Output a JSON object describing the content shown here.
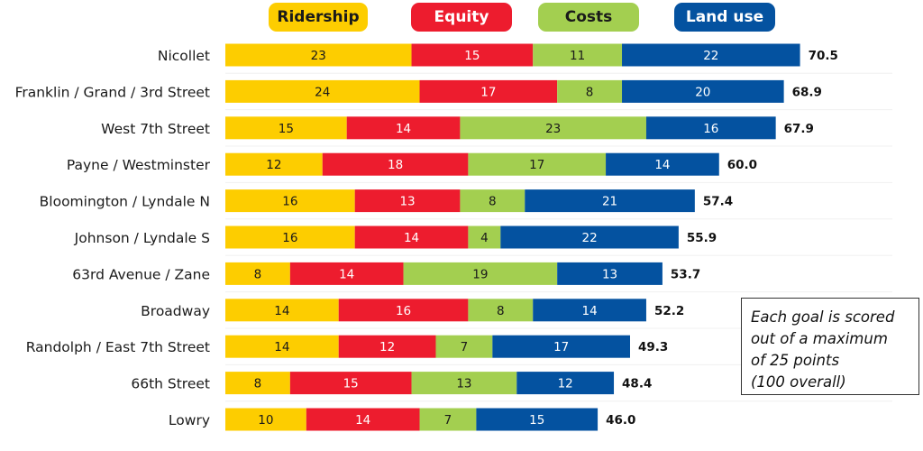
{
  "chart_data": {
    "type": "bar",
    "orientation": "horizontal",
    "stacked": true,
    "title": "",
    "xlabel": "",
    "ylabel": "",
    "xlim": [
      0,
      100
    ],
    "grid": false,
    "legend_position": "top",
    "categories": [
      "Nicollet",
      "Franklin / Grand / 3rd Street",
      "West 7th Street",
      "Payne / Westminster",
      "Bloomington / Lyndale N",
      "Johnson / Lyndale S",
      "63rd Avenue / Zane",
      "Broadway",
      "Randolph / East 7th Street",
      "66th Street",
      "Lowry"
    ],
    "series": [
      {
        "name": "Ridership",
        "color": "#FDCD00",
        "text_color": "#1a1a1a",
        "values": [
          23,
          24,
          15,
          12,
          16,
          16,
          8,
          14,
          14,
          8,
          10
        ]
      },
      {
        "name": "Equity",
        "color": "#ED1C2E",
        "text_color": "#ffffff",
        "values": [
          15,
          17,
          14,
          18,
          13,
          14,
          14,
          16,
          12,
          15,
          14
        ]
      },
      {
        "name": "Costs",
        "color": "#A3CF50",
        "text_color": "#1a1a1a",
        "values": [
          11,
          8,
          23,
          17,
          8,
          4,
          19,
          8,
          7,
          13,
          7
        ]
      },
      {
        "name": "Land use",
        "color": "#0452A0",
        "text_color": "#ffffff",
        "values": [
          22,
          20,
          16,
          14,
          21,
          22,
          13,
          14,
          17,
          12,
          15
        ]
      }
    ],
    "totals": [
      "70.5",
      "68.9",
      "67.9",
      "60.0",
      "57.4",
      "55.9",
      "53.7",
      "52.2",
      "49.3",
      "48.4",
      "46.0"
    ]
  },
  "note": {
    "lines": [
      "Each goal is scored",
      "out of a maximum",
      "of 25 points",
      "(100 overall)"
    ]
  }
}
